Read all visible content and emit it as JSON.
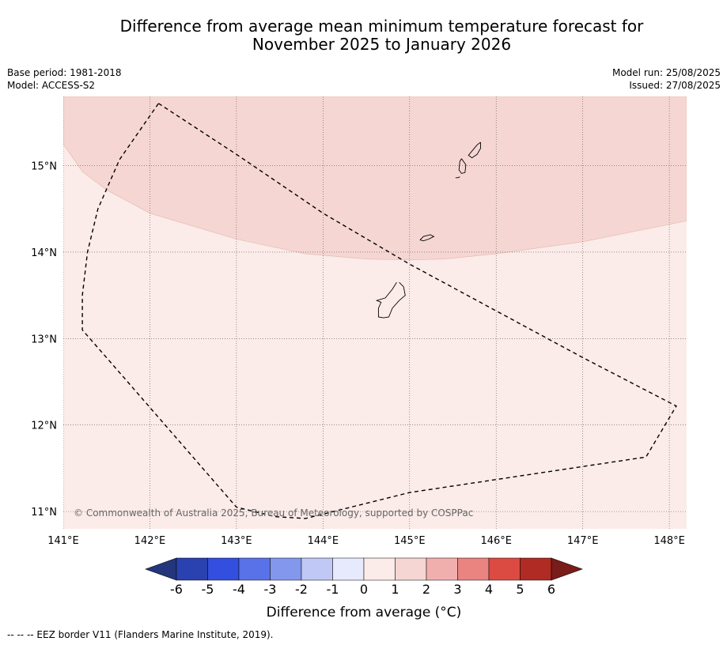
{
  "title": {
    "line1": "Difference from average mean minimum temperature forecast for",
    "line2": "November 2025 to January 2026"
  },
  "meta": {
    "base_period": "Base period: 1981-2018",
    "model": "Model: ACCESS-S2",
    "model_run": "Model run: 25/08/2025",
    "issued": "Issued: 27/08/2025"
  },
  "map": {
    "lon_range": [
      141,
      148.2
    ],
    "lat_range": [
      10.8,
      15.8
    ],
    "lon_ticks": [
      141,
      142,
      143,
      144,
      145,
      146,
      147,
      148
    ],
    "lat_ticks": [
      11,
      12,
      13,
      14,
      15
    ],
    "lon_tick_labels": [
      "141°E",
      "142°E",
      "143°E",
      "144°E",
      "145°E",
      "146°E",
      "147°E",
      "148°E"
    ],
    "lat_tick_labels": [
      "11°N",
      "12°N",
      "13°N",
      "14°N",
      "15°N"
    ],
    "grid": true,
    "fields": [
      {
        "category": "0 to 1",
        "color": "#fbebe9"
      },
      {
        "category": "1 to 2",
        "color": "#f5d6d3"
      }
    ],
    "band_boundary_1_to_2": [
      [
        141.0,
        15.25
      ],
      [
        141.22,
        14.93
      ],
      [
        141.5,
        14.72
      ],
      [
        142.0,
        14.45
      ],
      [
        143.0,
        14.15
      ],
      [
        143.8,
        13.98
      ],
      [
        144.5,
        13.92
      ],
      [
        145.0,
        13.91
      ],
      [
        145.4,
        13.92
      ],
      [
        146.0,
        13.98
      ],
      [
        147.0,
        14.12
      ],
      [
        148.2,
        14.36
      ]
    ],
    "eez_border": [
      [
        142.1,
        15.72
      ],
      [
        143.0,
        15.13
      ],
      [
        144.0,
        14.45
      ],
      [
        145.0,
        13.86
      ],
      [
        146.0,
        13.32
      ],
      [
        147.0,
        12.78
      ],
      [
        148.08,
        12.22
      ],
      [
        147.73,
        11.63
      ],
      [
        145.0,
        11.22
      ],
      [
        143.8,
        10.92
      ],
      [
        143.45,
        10.94
      ],
      [
        143.0,
        11.05
      ],
      [
        141.7,
        12.55
      ],
      [
        141.22,
        13.1
      ],
      [
        141.22,
        13.5
      ],
      [
        141.28,
        14.0
      ],
      [
        141.4,
        14.5
      ],
      [
        141.65,
        15.07
      ],
      [
        142.1,
        15.72
      ]
    ],
    "islands": [
      {
        "name": "Guam",
        "outline": [
          [
            144.88,
            13.65
          ],
          [
            144.93,
            13.6
          ],
          [
            144.95,
            13.5
          ],
          [
            144.88,
            13.44
          ],
          [
            144.8,
            13.35
          ],
          [
            144.76,
            13.25
          ],
          [
            144.7,
            13.24
          ],
          [
            144.64,
            13.25
          ],
          [
            144.64,
            13.35
          ],
          [
            144.67,
            13.42
          ],
          [
            144.62,
            13.44
          ],
          [
            144.72,
            13.47
          ],
          [
            144.8,
            13.57
          ],
          [
            144.85,
            13.65
          ]
        ]
      },
      {
        "name": "Rota",
        "outline": [
          [
            145.12,
            14.14
          ],
          [
            145.16,
            14.13
          ],
          [
            145.22,
            14.15
          ],
          [
            145.28,
            14.18
          ],
          [
            145.24,
            14.2
          ],
          [
            145.16,
            14.18
          ],
          [
            145.12,
            14.14
          ]
        ]
      },
      {
        "name": "Tinian",
        "outline": [
          [
            145.6,
            15.08
          ],
          [
            145.65,
            15.01
          ],
          [
            145.64,
            14.92
          ],
          [
            145.6,
            14.91
          ],
          [
            145.57,
            14.95
          ],
          [
            145.58,
            15.05
          ],
          [
            145.6,
            15.08
          ]
        ]
      },
      {
        "name": "Saipan",
        "outline": [
          [
            145.82,
            15.27
          ],
          [
            145.78,
            15.24
          ],
          [
            145.73,
            15.18
          ],
          [
            145.68,
            15.12
          ],
          [
            145.72,
            15.09
          ],
          [
            145.78,
            15.13
          ],
          [
            145.82,
            15.2
          ],
          [
            145.82,
            15.27
          ]
        ]
      },
      {
        "name": "Aguijan",
        "outline": [
          [
            145.53,
            14.86
          ],
          [
            145.56,
            14.86
          ],
          [
            145.58,
            14.87
          ]
        ]
      }
    ],
    "copyright": "© Commonwealth of Australia 2025, Bureau of Meteorology, supported by COSPPac"
  },
  "colorbar": {
    "label": "Difference from average (°C)",
    "ticks": [
      "-6",
      "-5",
      "-4",
      "-3",
      "-2",
      "-1",
      "0",
      "1",
      "2",
      "3",
      "4",
      "5",
      "6"
    ],
    "under_color": "#23357b",
    "over_color": "#7a1c1a",
    "colors": [
      "#2a41b0",
      "#334fe0",
      "#5a72e7",
      "#8397ed",
      "#c0c8f5",
      "#e6eafc",
      "#fbebe9",
      "#f5d6d3",
      "#f0afad",
      "#e98480",
      "#dc4b42",
      "#af2b23"
    ]
  },
  "footnote": "--  --  -- EEZ border V11 (Flanders Marine Institute, 2019)."
}
